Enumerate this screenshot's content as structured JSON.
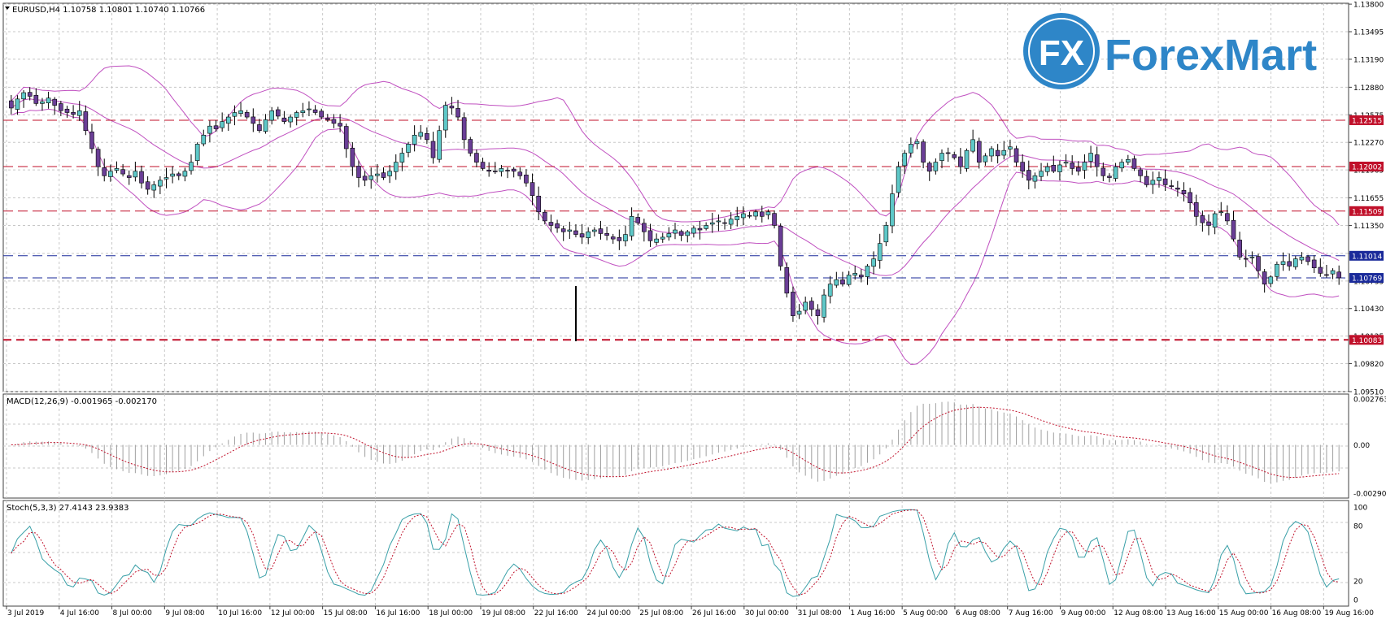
{
  "window": {
    "header_text": "EURUSD,H4  1.10758 1.10801 1.10740 1.10766"
  },
  "logo": {
    "text": "ForexMart",
    "mark": "FX",
    "color": "#2E86C8"
  },
  "price_panel": {
    "axis_labels": [
      "1.13800",
      "1.13495",
      "1.13190",
      "1.12880",
      "1.12575",
      "1.12270",
      "1.11965",
      "1.11655",
      "1.11350",
      "1.11040",
      "1.10735",
      "1.10430",
      "1.10125",
      "1.09820",
      "1.09510"
    ],
    "levels": [
      {
        "label": "1.12515",
        "value": 1.12515,
        "color": "#c0102a",
        "style": "dash"
      },
      {
        "label": "1.12002",
        "value": 1.12002,
        "color": "#c0102a",
        "style": "dash"
      },
      {
        "label": "1.11509",
        "value": 1.11509,
        "color": "#c0102a",
        "style": "dash"
      },
      {
        "label": "1.11014",
        "value": 1.11014,
        "color": "#1a2a9a",
        "style": "dash"
      },
      {
        "label": "1.10769",
        "value": 1.10769,
        "color": "#1a2a9a",
        "style": "dash"
      },
      {
        "label": "1.10083",
        "value": 1.10083,
        "color": "#c0102a",
        "style": "thick-dash"
      }
    ],
    "colors": {
      "bull": "#5ec8c8",
      "bear": "#6a3e96",
      "wick": "#000000",
      "bands": "#c050c0",
      "grid": "#c8c8c8"
    }
  },
  "macd_panel": {
    "label": "MACD(12,26,9) -0.001965 -0.002170",
    "axis_labels": [
      "0.002763",
      "0.00",
      "-0.002905"
    ],
    "colors": {
      "histogram": "#a0a0a0",
      "signal": "#c0102a"
    }
  },
  "stoch_panel": {
    "label": "Stoch(5,3,3) 27.4143 23.9383",
    "axis_labels": [
      "100",
      "80",
      "20",
      "0"
    ],
    "colors": {
      "main": "#3aa0a8",
      "signal": "#c0102a"
    }
  },
  "time_axis": {
    "labels": [
      "3 Jul 2019",
      "4 Jul 16:00",
      "8 Jul 00:00",
      "9 Jul 08:00",
      "10 Jul 16:00",
      "12 Jul 00:00",
      "15 Jul 08:00",
      "16 Jul 16:00",
      "18 Jul 00:00",
      "19 Jul 08:00",
      "22 Jul 16:00",
      "24 Jul 00:00",
      "25 Jul 08:00",
      "26 Jul 16:00",
      "30 Jul 00:00",
      "31 Jul 08:00",
      "1 Aug 16:00",
      "5 Aug 00:00",
      "6 Aug 08:00",
      "7 Aug 16:00",
      "9 Aug 00:00",
      "12 Aug 08:00",
      "13 Aug 16:00",
      "15 Aug 00:00",
      "16 Aug 08:00",
      "19 Aug 16:00"
    ]
  },
  "chart_data": {
    "type": "candlestick",
    "symbol_timeframe": "EURUSD,H4",
    "ylim": [
      1.0951,
      1.1381
    ],
    "closes": [
      1.1265,
      1.1275,
      1.1282,
      1.1278,
      1.127,
      1.1272,
      1.1276,
      1.1268,
      1.1262,
      1.126,
      1.1258,
      1.1262,
      1.124,
      1.122,
      1.12,
      1.119,
      1.1195,
      1.1198,
      1.1192,
      1.1188,
      1.1195,
      1.1182,
      1.1175,
      1.118,
      1.1185,
      1.1188,
      1.1192,
      1.119,
      1.1195,
      1.1205,
      1.1225,
      1.1235,
      1.1245,
      1.1242,
      1.125,
      1.1255,
      1.126,
      1.1262,
      1.1255,
      1.1248,
      1.124,
      1.1252,
      1.1262,
      1.1256,
      1.125,
      1.1255,
      1.126,
      1.1262,
      1.1264,
      1.126,
      1.1255,
      1.1252,
      1.1248,
      1.1245,
      1.122,
      1.12,
      1.1188,
      1.1185,
      1.119,
      1.1192,
      1.1188,
      1.1195,
      1.1205,
      1.1215,
      1.1225,
      1.1235,
      1.1238,
      1.123,
      1.121,
      1.124,
      1.1268,
      1.1265,
      1.1255,
      1.123,
      1.1215,
      1.1205,
      1.1198,
      1.1195,
      1.1195,
      1.1198,
      1.1196,
      1.1195,
      1.119,
      1.1182,
      1.1168,
      1.115,
      1.114,
      1.1135,
      1.1132,
      1.1128,
      1.113,
      1.1125,
      1.1122,
      1.1128,
      1.113,
      1.1126,
      1.1124,
      1.112,
      1.1118,
      1.1125,
      1.1145,
      1.1138,
      1.1128,
      1.1118,
      1.112,
      1.1122,
      1.1126,
      1.113,
      1.1124,
      1.1128,
      1.1132,
      1.113,
      1.1135,
      1.1138,
      1.114,
      1.1138,
      1.1142,
      1.1145,
      1.1148,
      1.1146,
      1.115,
      1.1145,
      1.115,
      1.1135,
      1.109,
      1.106,
      1.1035,
      1.104,
      1.105,
      1.1042,
      1.1035,
      1.1058,
      1.107,
      1.1075,
      1.107,
      1.108,
      1.1082,
      1.1078,
      1.109,
      1.1098,
      1.1115,
      1.1135,
      1.117,
      1.12,
      1.1215,
      1.1225,
      1.1228,
      1.1205,
      1.1195,
      1.1205,
      1.1215,
      1.1215,
      1.121,
      1.12,
      1.1218,
      1.123,
      1.1205,
      1.1212,
      1.122,
      1.1212,
      1.1218,
      1.1222,
      1.1205,
      1.1195,
      1.1185,
      1.119,
      1.1195,
      1.12,
      1.1195,
      1.1202,
      1.1205,
      1.1198,
      1.1195,
      1.1205,
      1.1215,
      1.12,
      1.119,
      1.1188,
      1.12,
      1.1205,
      1.1208,
      1.1198,
      1.119,
      1.118,
      1.1185,
      1.1188,
      1.118,
      1.1178,
      1.1175,
      1.117,
      1.116,
      1.1145,
      1.1138,
      1.1135,
      1.1148,
      1.115,
      1.114,
      1.112,
      1.11,
      1.1098,
      1.11,
      1.1085,
      1.107,
      1.1078,
      1.1092,
      1.1095,
      1.109,
      1.1098,
      1.11,
      1.1095,
      1.1088,
      1.1082,
      1.108,
      1.1085,
      1.1077
    ],
    "macd_range": [
      -0.002905,
      0.002763
    ],
    "stoch_range": [
      0,
      100
    ]
  }
}
